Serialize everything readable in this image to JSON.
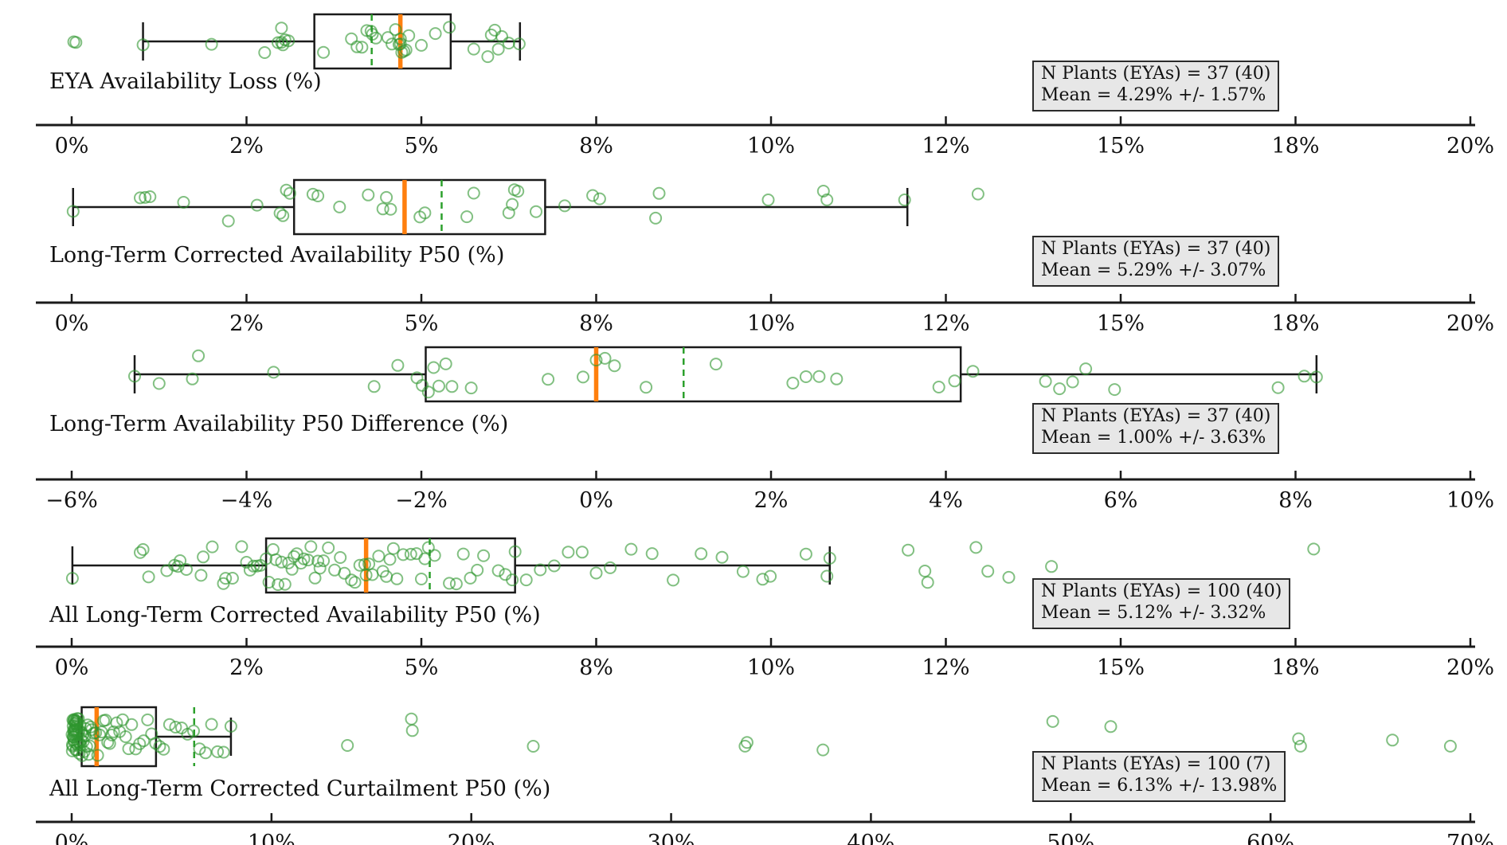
{
  "figure": {
    "background": "#ffffff",
    "n_subplots": 5
  },
  "colors": {
    "point_stroke": "#2e962e",
    "median_line": "#ff7f0e",
    "mean_line": "#2ca02c",
    "box_stroke": "#1a1a1a",
    "axis_stroke": "#1a1a1a",
    "stat_box_bg": "#e7e7e7",
    "text": "#111111"
  },
  "chart_data": [
    {
      "type": "boxplot-strip",
      "title": "EYA Availability Loss (%)",
      "stats_box": {
        "line1": "N Plants (EYAs) = 37 (40)",
        "line2": "Mean = 4.29% +/- 1.57%"
      },
      "xlim": [
        0,
        20
      ],
      "tick_values": [
        0,
        2.5,
        5,
        7.5,
        10,
        12.5,
        15,
        17.5,
        20
      ],
      "tick_labels": [
        "0%",
        "2%",
        "5%",
        "8%",
        "10%",
        "12%",
        "15%",
        "18%",
        "20%"
      ],
      "box": {
        "q1": 3.47,
        "median": 4.7,
        "q3": 5.42,
        "whisker_low": 1.02,
        "whisker_high": 6.41,
        "mean": 4.29
      },
      "points": [
        0.03,
        0.06,
        1.02,
        2.0,
        2.76,
        2.95,
        3.0,
        3.0,
        3.02,
        3.05,
        3.1,
        3.6,
        4.0,
        4.08,
        4.15,
        4.22,
        4.28,
        4.3,
        4.35,
        4.52,
        4.58,
        4.63,
        4.68,
        4.7,
        4.7,
        4.72,
        4.75,
        4.78,
        4.82,
        5.0,
        5.2,
        5.4,
        5.75,
        5.95,
        6.0,
        6.05,
        6.1,
        6.15,
        6.25,
        6.4
      ]
    },
    {
      "type": "boxplot-strip",
      "title": "Long-Term Corrected Availability P50 (%)",
      "stats_box": {
        "line1": "N Plants (EYAs) = 37 (40)",
        "line2": "Mean = 5.29% +/- 3.07%"
      },
      "xlim": [
        0,
        20
      ],
      "tick_values": [
        0,
        2.5,
        5,
        7.5,
        10,
        12.5,
        15,
        17.5,
        20
      ],
      "tick_labels": [
        "0%",
        "2%",
        "5%",
        "8%",
        "10%",
        "12%",
        "15%",
        "18%",
        "20%"
      ],
      "box": {
        "q1": 3.18,
        "median": 4.76,
        "q3": 6.77,
        "whisker_low": 0.02,
        "whisker_high": 11.95,
        "mean": 5.29
      },
      "points": [
        0.02,
        0.98,
        1.05,
        1.12,
        1.6,
        2.24,
        2.65,
        2.98,
        3.02,
        3.07,
        3.12,
        3.45,
        3.52,
        3.83,
        4.24,
        4.45,
        4.5,
        4.56,
        4.98,
        5.05,
        5.65,
        5.75,
        6.25,
        6.3,
        6.33,
        6.38,
        6.64,
        7.05,
        7.45,
        7.55,
        8.35,
        8.4,
        9.96,
        10.75,
        10.8,
        11.91,
        12.96
      ]
    },
    {
      "type": "boxplot-strip",
      "title": "Long-Term Availability P50 Difference (%)",
      "stats_box": {
        "line1": "N Plants (EYAs) = 37 (40)",
        "line2": "Mean = 1.00% +/- 3.63%"
      },
      "xlim": [
        -6,
        10
      ],
      "tick_values": [
        -6,
        -4,
        -2,
        0,
        2,
        4,
        6,
        8,
        10
      ],
      "tick_labels": [
        "−6%",
        "−4%",
        "−2%",
        "0%",
        "2%",
        "4%",
        "6%",
        "8%",
        "10%"
      ],
      "box": {
        "q1": -1.95,
        "median": 0.0,
        "q3": 4.17,
        "whisker_low": -5.28,
        "whisker_high": 8.24,
        "mean": 1.0
      },
      "points": [
        -5.28,
        -5.0,
        -4.62,
        -4.55,
        -3.69,
        -2.54,
        -2.27,
        -2.05,
        -1.99,
        -1.92,
        -1.86,
        -1.8,
        -1.72,
        -1.65,
        -1.43,
        -0.55,
        -0.15,
        0.0,
        0.1,
        0.21,
        0.57,
        1.37,
        2.25,
        2.4,
        2.55,
        2.75,
        3.92,
        4.1,
        4.31,
        5.14,
        5.3,
        5.45,
        5.6,
        5.93,
        7.8,
        8.1,
        8.24
      ]
    },
    {
      "type": "boxplot-strip",
      "title": "All Long-Term Corrected Availability P50 (%)",
      "stats_box": {
        "line1": "N Plants (EYAs) = 100 (40)",
        "line2": "Mean = 5.12% +/- 3.32%"
      },
      "xlim": [
        0,
        20
      ],
      "tick_values": [
        0,
        2.5,
        5,
        7.5,
        10,
        12.5,
        15,
        17.5,
        20
      ],
      "tick_labels": [
        "0%",
        "2%",
        "5%",
        "8%",
        "10%",
        "12%",
        "15%",
        "18%",
        "20%"
      ],
      "box": {
        "q1": 2.78,
        "median": 4.21,
        "q3": 6.34,
        "whisker_low": 0.01,
        "whisker_high": 10.84,
        "mean": 5.12
      },
      "points": [
        0.01,
        0.98,
        1.02,
        1.1,
        1.36,
        1.47,
        1.52,
        1.55,
        1.64,
        1.85,
        1.88,
        2.01,
        2.17,
        2.2,
        2.3,
        2.43,
        2.5,
        2.55,
        2.6,
        2.65,
        2.7,
        2.78,
        2.82,
        2.88,
        2.92,
        2.95,
        3.0,
        3.05,
        3.1,
        3.15,
        3.18,
        3.22,
        3.28,
        3.32,
        3.38,
        3.42,
        3.48,
        3.52,
        3.55,
        3.6,
        3.67,
        3.76,
        3.84,
        3.9,
        4.0,
        4.05,
        4.12,
        4.19,
        4.21,
        4.25,
        4.3,
        4.39,
        4.45,
        4.5,
        4.55,
        4.6,
        4.65,
        4.74,
        4.85,
        4.93,
        5.0,
        5.05,
        5.1,
        5.19,
        5.4,
        5.5,
        5.6,
        5.7,
        5.8,
        5.89,
        6.1,
        6.2,
        6.3,
        6.34,
        6.5,
        6.7,
        6.9,
        7.1,
        7.3,
        7.5,
        7.7,
        8.0,
        8.3,
        8.6,
        9.0,
        9.3,
        9.6,
        9.88,
        9.99,
        10.5,
        10.8,
        10.84,
        11.96,
        12.2,
        12.24,
        12.93,
        13.1,
        13.4,
        14.01,
        17.76
      ]
    },
    {
      "type": "boxplot-strip",
      "title": "All Long-Term Corrected Curtailment P50 (%)",
      "stats_box": {
        "line1": "N Plants (EYAs) = 100 (7)",
        "line2": "Mean = 6.13% +/- 13.98%"
      },
      "xlim": [
        0,
        70
      ],
      "tick_values": [
        0,
        10,
        20,
        30,
        40,
        50,
        60,
        70
      ],
      "tick_labels": [
        "0%",
        "10%",
        "20%",
        "30%",
        "40%",
        "50%",
        "60%",
        "70%"
      ],
      "box": {
        "q1": 0.5,
        "median": 1.25,
        "q3": 4.22,
        "whisker_low": 0.35,
        "whisker_high": 7.97,
        "mean": 6.13
      },
      "points": [
        0.02,
        0.03,
        0.04,
        0.05,
        0.06,
        0.07,
        0.08,
        0.09,
        0.1,
        0.1,
        0.11,
        0.12,
        0.13,
        0.13,
        0.14,
        0.15,
        0.16,
        0.17,
        0.18,
        0.19,
        0.2,
        0.21,
        0.22,
        0.23,
        0.24,
        0.25,
        0.26,
        0.27,
        0.28,
        0.28,
        0.3,
        0.32,
        0.33,
        0.34,
        0.36,
        0.38,
        0.4,
        0.42,
        0.45,
        0.48,
        0.5,
        0.52,
        0.55,
        0.58,
        0.62,
        0.66,
        0.7,
        0.75,
        0.8,
        0.85,
        0.9,
        0.95,
        1.0,
        1.1,
        1.2,
        1.3,
        1.4,
        1.5,
        1.6,
        1.7,
        1.8,
        1.9,
        2.0,
        2.1,
        2.25,
        2.4,
        2.55,
        2.7,
        2.85,
        3.0,
        3.2,
        3.4,
        3.6,
        3.8,
        4.0,
        4.2,
        4.4,
        4.6,
        4.9,
        5.2,
        5.5,
        5.8,
        6.1,
        6.4,
        6.7,
        7.0,
        7.3,
        7.6,
        7.97,
        13.8,
        17.0,
        17.05,
        23.1,
        33.7,
        33.8,
        37.6,
        49.1,
        52.0,
        61.4,
        61.5,
        66.1,
        69.0
      ]
    }
  ]
}
